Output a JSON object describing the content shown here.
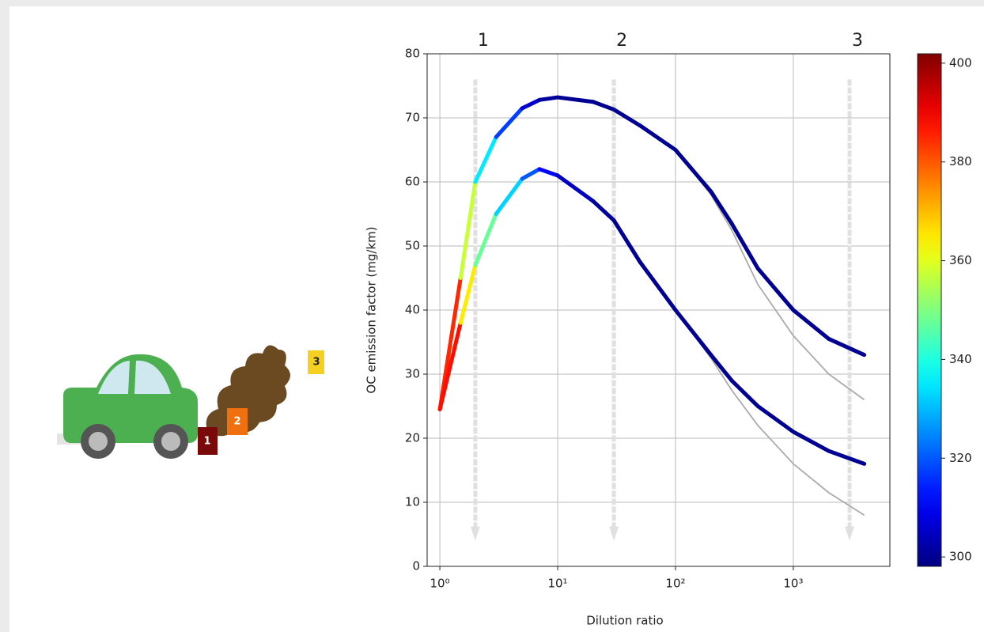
{
  "chart_data": {
    "type": "line",
    "x_label": "Dilution ratio",
    "y_label": "OC emission factor (mg/km)",
    "x": [
      1,
      1.5,
      2,
      3,
      5,
      7,
      10,
      20,
      30,
      50,
      100,
      200,
      300,
      500,
      1000,
      2000,
      4000
    ],
    "series": [
      {
        "values": [
          24.5,
          45,
          60,
          67,
          71.5,
          72.8,
          73.2,
          72.5,
          71.3,
          68.8,
          65,
          58.5,
          53.5,
          46.5,
          40,
          35.5,
          33
        ],
        "temperature": [
          400,
          370,
          345,
          325,
          310,
          303,
          300,
          300,
          300,
          300,
          300,
          300,
          300,
          300,
          300,
          300,
          300
        ]
      },
      {
        "values": [
          24.5,
          38,
          47,
          55,
          60.5,
          62,
          61,
          57,
          54,
          47.5,
          40,
          33,
          29,
          25,
          21,
          18,
          16
        ],
        "temperature": [
          400,
          375,
          355,
          340,
          325,
          315,
          308,
          302,
          300,
          300,
          300,
          300,
          300,
          300,
          300,
          300,
          300
        ]
      },
      {
        "color": "#aaaaaa",
        "values": [
          null,
          null,
          null,
          null,
          null,
          null,
          null,
          null,
          null,
          null,
          65,
          58,
          52.5,
          44,
          36,
          30,
          26
        ]
      },
      {
        "color": "#aaaaaa",
        "values": [
          null,
          null,
          null,
          null,
          null,
          null,
          null,
          null,
          null,
          null,
          40,
          32.5,
          27.5,
          22,
          16,
          11.5,
          8
        ]
      }
    ],
    "colormap": "jet",
    "clim": [
      298.1,
      401.9
    ],
    "cticks": [
      300,
      320,
      340,
      360,
      380,
      400
    ],
    "xscale": "log",
    "xlim": [
      0.78,
      6600
    ],
    "xticks": [
      {
        "value": 1,
        "label": "10⁰"
      },
      {
        "value": 10,
        "label": "10¹"
      },
      {
        "value": 100,
        "label": "10²"
      },
      {
        "value": 1000,
        "label": "10³"
      }
    ],
    "ylim": [
      0,
      80
    ],
    "yticks": [
      0,
      10,
      20,
      30,
      40,
      50,
      60,
      70,
      80
    ],
    "grid": true,
    "stage_arrows": {
      "x": [
        2,
        30,
        3000
      ],
      "labels": [
        "1",
        "2",
        "3"
      ],
      "y_start": 76,
      "y_end": 4
    }
  },
  "illustration": {
    "labels": [
      "1",
      "2",
      "3"
    ]
  }
}
